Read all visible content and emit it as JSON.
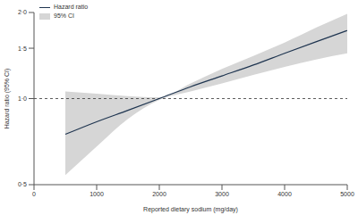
{
  "chart_data": {
    "type": "line",
    "x_label": "Reported dietary sodium (mg/day)",
    "y_label": "Hazard ratio (95% CI)",
    "x": [
      500,
      1000,
      1500,
      2000,
      2500,
      3000,
      3500,
      4000,
      4500,
      5000
    ],
    "series": [
      {
        "name": "Hazard ratio",
        "color": "#1f3550",
        "values": [
          0.75,
          0.83,
          0.91,
          1.0,
          1.1,
          1.2,
          1.31,
          1.44,
          1.58,
          1.73
        ]
      },
      {
        "name": "95% CI",
        "color": "#d6d6d6",
        "type": "area",
        "lower": [
          0.54,
          0.68,
          0.85,
          0.99,
          1.06,
          1.13,
          1.21,
          1.29,
          1.37,
          1.44
        ],
        "upper": [
          1.06,
          1.04,
          1.02,
          1.01,
          1.13,
          1.27,
          1.41,
          1.57,
          1.77,
          1.98
        ]
      }
    ],
    "reference_line": 1.0,
    "xlim": [
      0,
      5000
    ],
    "xticks": [
      0,
      1000,
      2000,
      3000,
      4000,
      5000
    ],
    "ylim": [
      0.5,
      2.0
    ],
    "yticks": [
      {
        "value": 0.5,
        "label": "0·5"
      },
      {
        "value": 1.0,
        "label": "1·0"
      },
      {
        "value": 1.5,
        "label": "1·5"
      },
      {
        "value": 2.0,
        "label": "2·0"
      }
    ],
    "log": "y",
    "legend": "upper left"
  }
}
